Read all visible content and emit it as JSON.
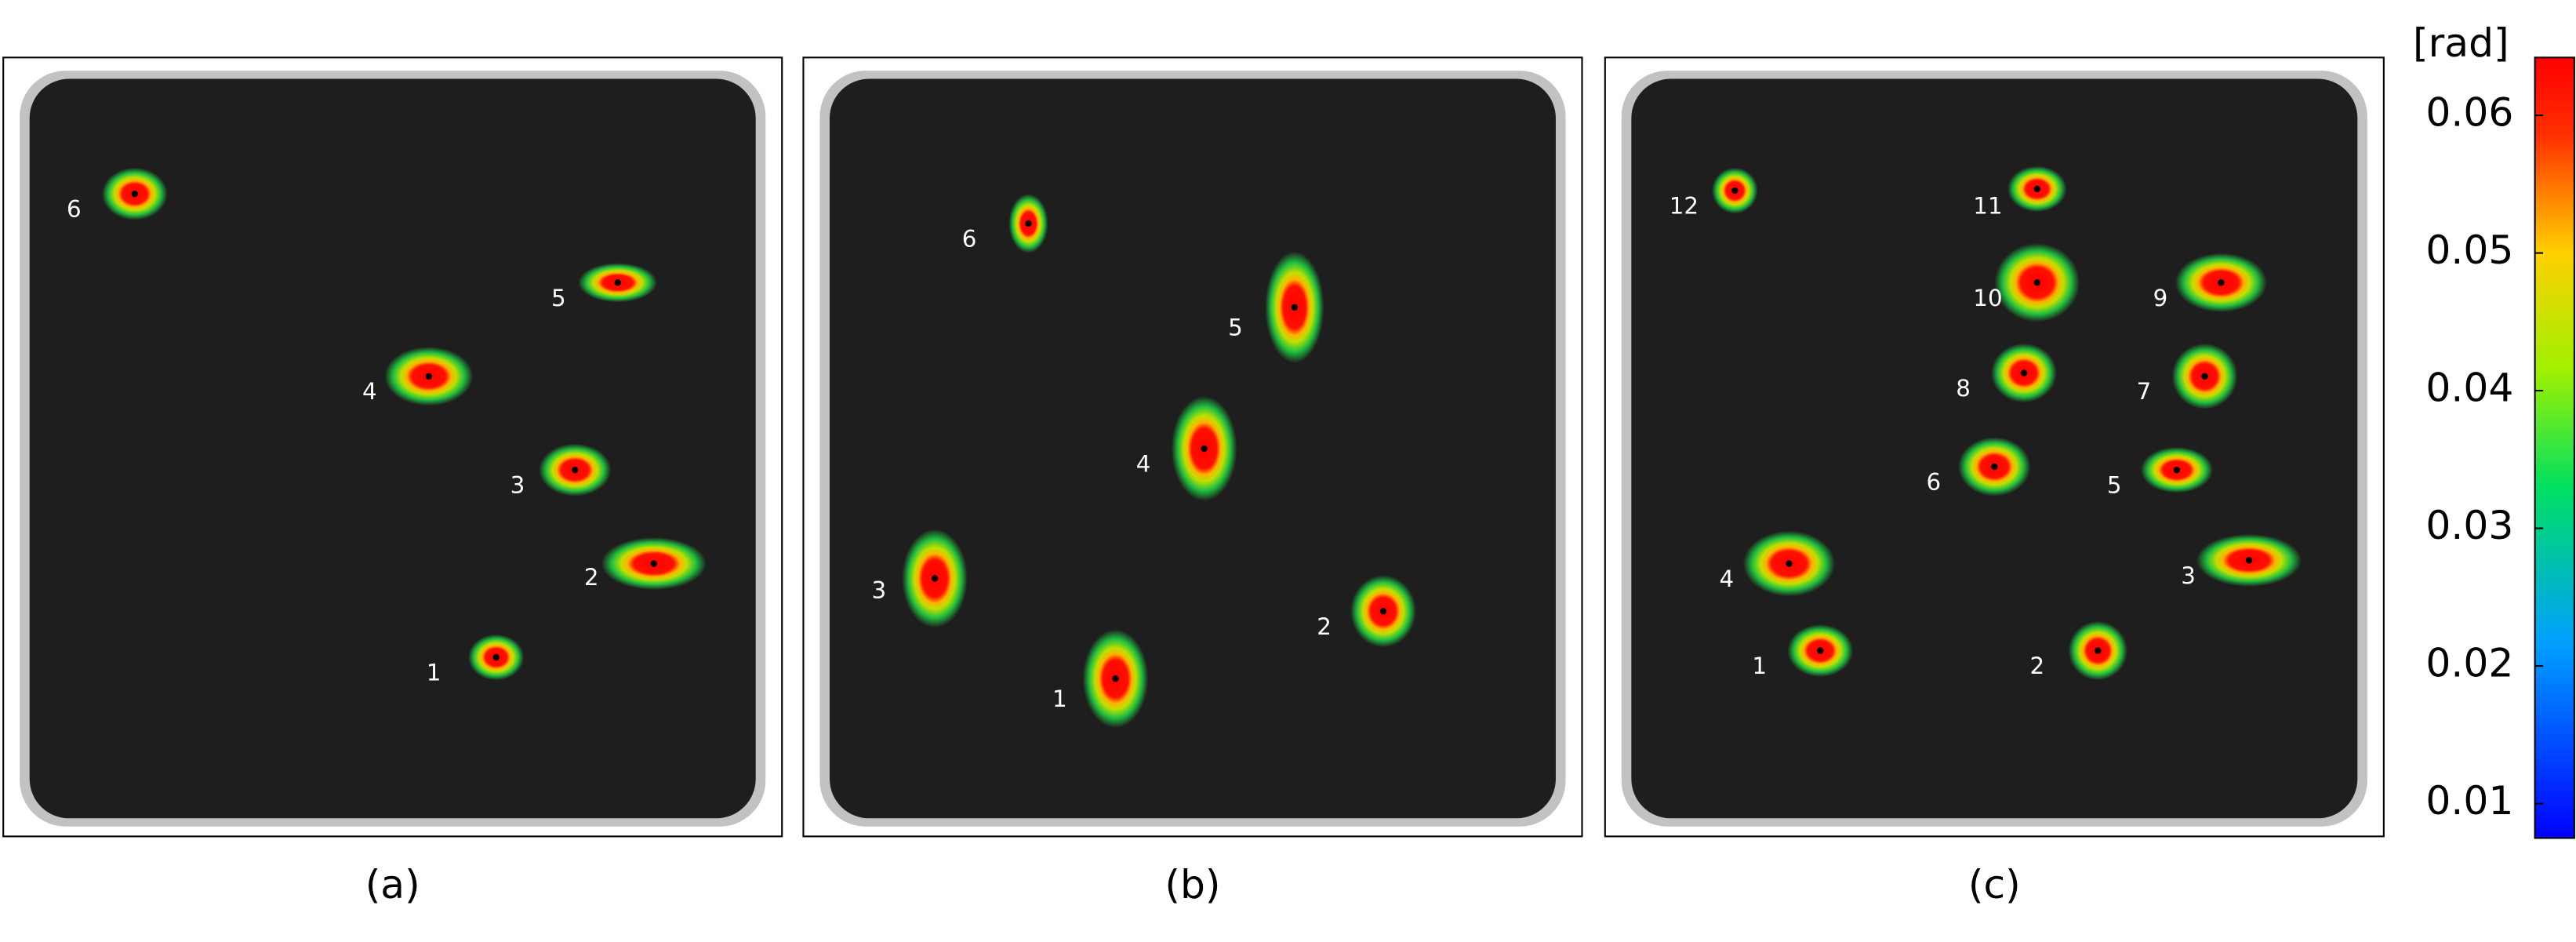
{
  "panels": [
    {
      "caption": "(a)",
      "spots": [
        "1",
        "2",
        "3",
        "4",
        "5",
        "6"
      ]
    },
    {
      "caption": "(b)",
      "spots": [
        "1",
        "2",
        "3",
        "4",
        "5",
        "6"
      ]
    },
    {
      "caption": "(c)",
      "spots": [
        "1",
        "2",
        "3",
        "4",
        "5",
        "6",
        "7",
        "8",
        "9",
        "10",
        "11",
        "12"
      ]
    }
  ],
  "colorbar": {
    "label": "[rad]",
    "lim": [
      0.0075,
      0.0642
    ],
    "ticks": [
      0.01,
      0.02,
      0.03,
      0.04,
      0.05,
      0.06
    ]
  }
}
